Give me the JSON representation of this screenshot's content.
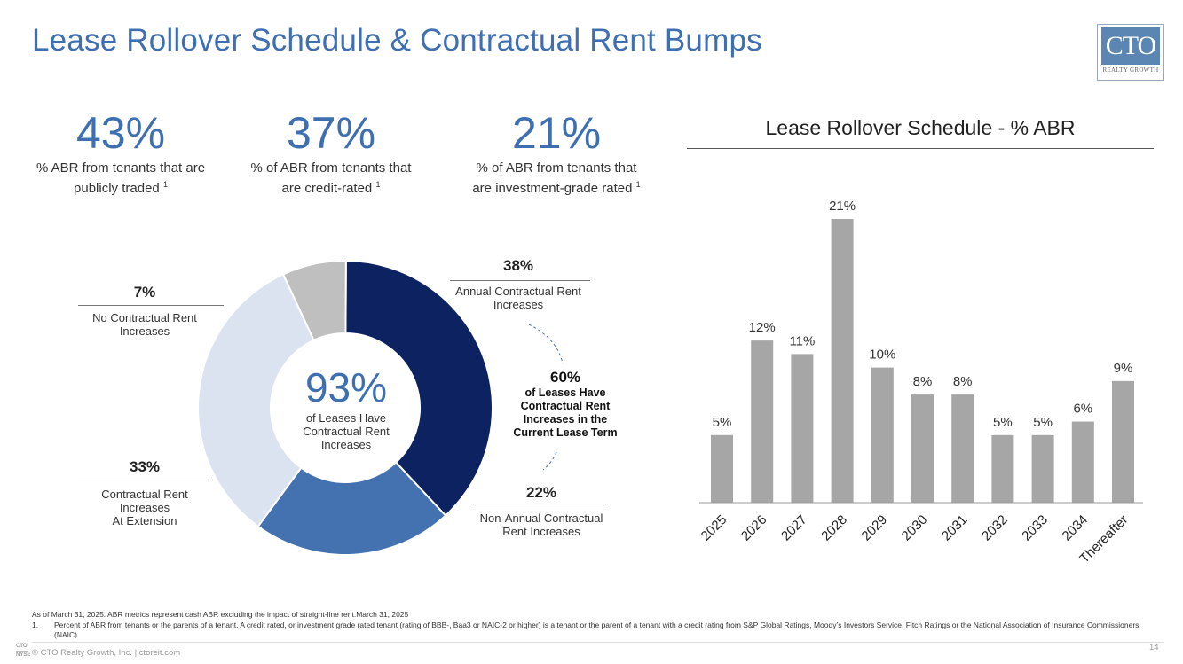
{
  "title": "Lease Rollover Schedule & Contractual Rent Bumps",
  "logo": {
    "text": "CTO",
    "subtitle": "REALTY GROWTH"
  },
  "stats": [
    {
      "value": "43%",
      "label_line1": "% ABR from tenants that are",
      "label_line2": "publicly traded",
      "note": "1"
    },
    {
      "value": "37%",
      "label_line1": "% of ABR from tenants that",
      "label_line2": "are credit-rated",
      "note": "1"
    },
    {
      "value": "21%",
      "label_line1": "% of ABR from tenants that",
      "label_line2": "are investment-grade rated",
      "note": "1"
    }
  ],
  "donut": {
    "center_value": "93%",
    "center_label": [
      "of Leases Have",
      "Contractual Rent",
      "Increases"
    ],
    "segments": [
      {
        "name": "Annual Contractual Rent Increases",
        "value": 38,
        "pct": "38%",
        "lines": [
          "Annual Contractual Rent",
          "Increases"
        ],
        "color": "#0d2260"
      },
      {
        "name": "Non-Annual Contractual Rent Increases",
        "value": 22,
        "pct": "22%",
        "lines": [
          "Non-Annual Contractual",
          "Rent Increases"
        ],
        "color": "#4472b0"
      },
      {
        "name": "Contractual Rent Increases At Extension",
        "value": 33,
        "pct": "33%",
        "lines": [
          "Contractual Rent",
          "Increases",
          "At Extension"
        ],
        "color": "#dae3ef"
      },
      {
        "name": "No Contractual Rent Increases",
        "value": 7,
        "pct": "7%",
        "lines": [
          "No Contractual Rent",
          "Increases"
        ],
        "color": "#bfbfbf"
      }
    ],
    "callout": {
      "value": "60%",
      "lines": [
        "of Leases Have",
        "Contractual Rent",
        "Increases in the",
        "Current Lease Term"
      ]
    }
  },
  "chart_data": {
    "type": "bar",
    "title": "Lease Rollover Schedule - % ABR",
    "categories": [
      "2025",
      "2026",
      "2027",
      "2028",
      "2029",
      "2030",
      "2031",
      "2032",
      "2033",
      "2034",
      "Thereafter"
    ],
    "values": [
      5,
      12,
      11,
      21,
      10,
      8,
      8,
      5,
      5,
      6,
      9
    ],
    "labels": [
      "5%",
      "12%",
      "11%",
      "21%",
      "10%",
      "8%",
      "8%",
      "5%",
      "5%",
      "6%",
      "9%"
    ],
    "ylim": [
      0,
      21
    ],
    "xlabel": "",
    "ylabel": "",
    "bar_color": "#a6a6a6"
  },
  "footnotes": {
    "as_of": "As of March 31, 2025. ABR metrics represent cash ABR excluding the impact of straight-line rent.March 31, 2025",
    "note_number": "1.",
    "note_text": "Percent of ABR from tenants or the parents of a tenant. A credit rated, or investment grade rated tenant (rating of BBB-, Baa3 or NAIC-2 or higher) is a tenant or the parent of a tenant with a credit rating from S&P Global Ratings, Moody’s Investors Service, Fitch Ratings or the National Association of Insurance Commissioners (NAIC)"
  },
  "footer": {
    "ticker_top": "CTO",
    "ticker_bottom": "NYSE",
    "copyright": "© CTO Realty Growth, Inc. | ctoreit.com",
    "page_number": "14"
  }
}
